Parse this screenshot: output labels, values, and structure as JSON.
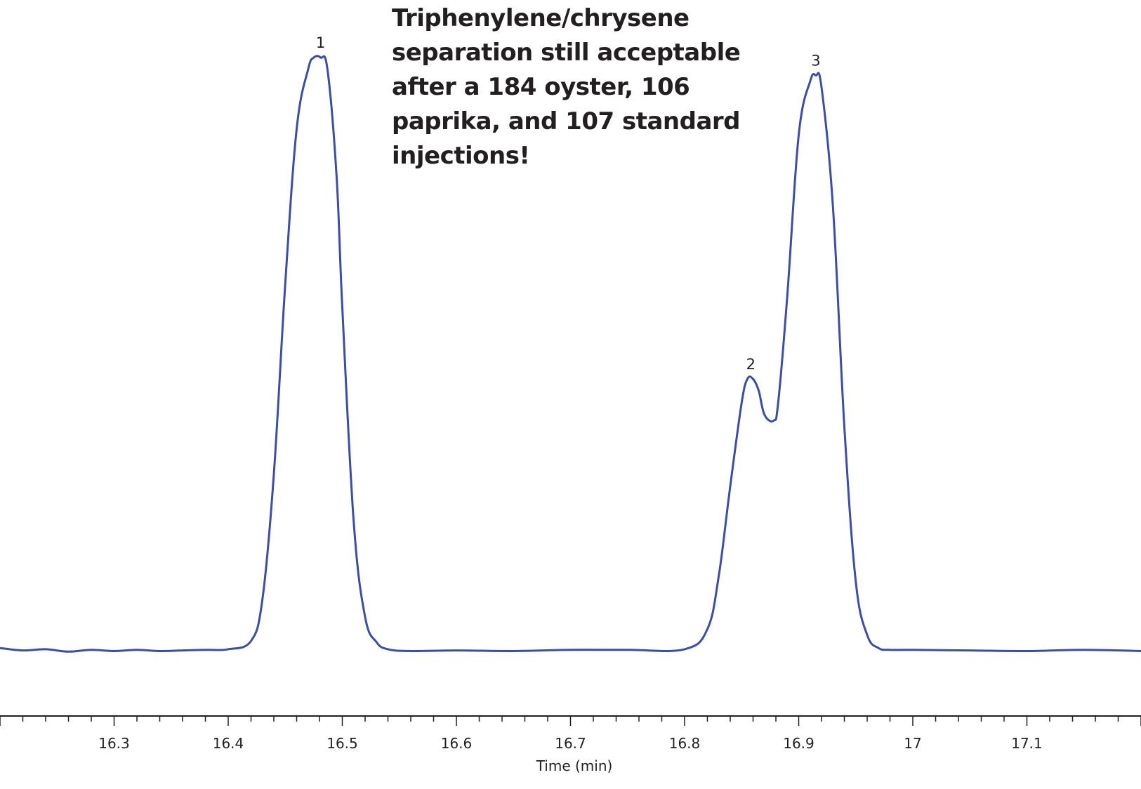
{
  "chart_data": {
    "type": "line",
    "title": "",
    "annotation": "Triphenylene/chrysene separation still acceptable after a 184 oyster, 106 paprika, and 107 standard injections!",
    "xlabel": "Time (min)",
    "ylabel": "",
    "xlim": [
      16.2,
      17.2
    ],
    "ylim": [
      0,
      100
    ],
    "x_ticks": [
      16.3,
      16.4,
      16.5,
      16.6,
      16.7,
      16.8,
      16.9,
      17,
      17.1
    ],
    "x_tick_labels": [
      "16.3",
      "16.4",
      "16.5",
      "16.6",
      "16.7",
      "16.8",
      "16.9",
      "17",
      "17.1"
    ],
    "grid": false,
    "line_color": "#3b4ea3",
    "peaks": [
      {
        "label": "1",
        "x": 16.481,
        "y": 100
      },
      {
        "label": "2",
        "x": 16.858,
        "y": 46
      },
      {
        "label": "3",
        "x": 16.915,
        "y": 97
      }
    ],
    "series": [
      {
        "x": [
          16.2,
          16.22,
          16.24,
          16.26,
          16.28,
          16.3,
          16.32,
          16.34,
          16.36,
          16.38,
          16.4,
          16.42,
          16.43,
          16.44,
          16.45,
          16.46,
          16.47,
          16.475,
          16.481,
          16.487,
          16.495,
          16.5,
          16.51,
          16.52,
          16.53,
          16.54,
          16.56,
          16.6,
          16.65,
          16.7,
          16.75,
          16.8,
          16.82,
          16.83,
          16.84,
          16.85,
          16.855,
          16.86,
          16.865,
          16.87,
          16.878,
          16.882,
          16.89,
          16.9,
          16.91,
          16.915,
          16.92,
          16.93,
          16.94,
          16.95,
          16.96,
          16.97,
          16.98,
          17.0,
          17.05,
          17.1,
          17.15,
          17.2
        ],
        "y": [
          0.8,
          0.4,
          0.6,
          0.2,
          0.5,
          0.3,
          0.5,
          0.3,
          0.4,
          0.5,
          0.6,
          2.0,
          9.0,
          30.0,
          62.0,
          88.0,
          98.0,
          100.0,
          100.0,
          98.0,
          80.0,
          58.0,
          22.0,
          6.0,
          1.8,
          0.6,
          0.3,
          0.4,
          0.3,
          0.5,
          0.5,
          0.6,
          4.0,
          13.0,
          28.0,
          42.0,
          46.0,
          46.0,
          44.0,
          40.0,
          39.0,
          42.0,
          60.0,
          87.0,
          96.0,
          97.0,
          95.0,
          75.0,
          38.0,
          12.0,
          3.0,
          0.8,
          0.5,
          0.5,
          0.4,
          0.3,
          0.5,
          0.3
        ]
      }
    ]
  }
}
